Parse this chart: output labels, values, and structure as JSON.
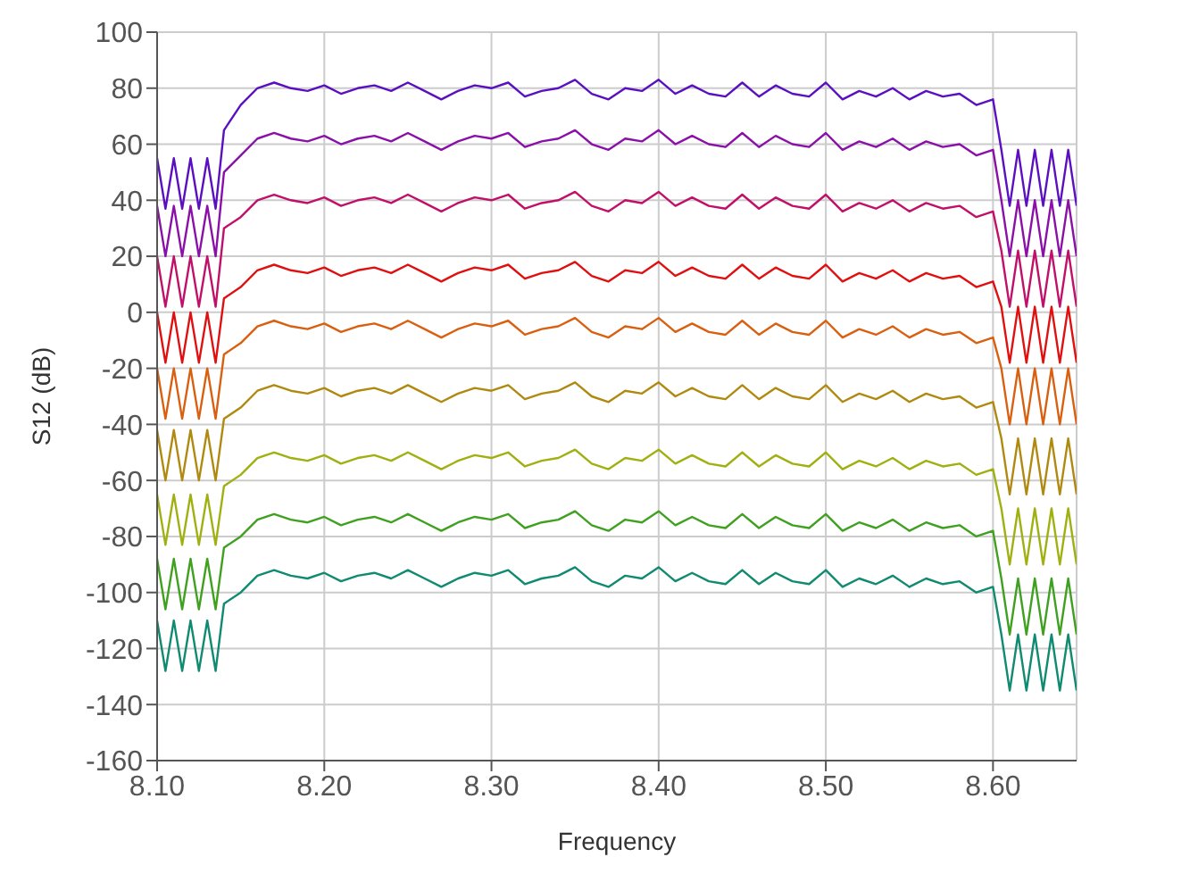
{
  "chart_data": {
    "type": "line",
    "xlabel": "Frequency",
    "ylabel": "S12 (dB)",
    "xlim": [
      8.1,
      8.65
    ],
    "xticks": [
      {
        "value": 8.1,
        "label": "8.10"
      },
      {
        "value": 8.2,
        "label": "8.20"
      },
      {
        "value": 8.3,
        "label": "8.30"
      },
      {
        "value": 8.4,
        "label": "8.40"
      },
      {
        "value": 8.5,
        "label": "8.50"
      },
      {
        "value": 8.6,
        "label": "8.60"
      }
    ],
    "ylim": [
      -160,
      100
    ],
    "yticks": [
      -160,
      -140,
      -120,
      -100,
      -80,
      -60,
      -40,
      -20,
      0,
      20,
      40,
      60,
      80,
      100
    ],
    "grid": true,
    "x": [
      8.1,
      8.105,
      8.11,
      8.115,
      8.12,
      8.125,
      8.13,
      8.135,
      8.14,
      8.15,
      8.16,
      8.17,
      8.18,
      8.19,
      8.2,
      8.21,
      8.22,
      8.23,
      8.24,
      8.25,
      8.26,
      8.27,
      8.28,
      8.29,
      8.3,
      8.31,
      8.32,
      8.33,
      8.34,
      8.35,
      8.36,
      8.37,
      8.38,
      8.39,
      8.4,
      8.41,
      8.42,
      8.43,
      8.44,
      8.45,
      8.46,
      8.47,
      8.48,
      8.49,
      8.5,
      8.51,
      8.52,
      8.53,
      8.54,
      8.55,
      8.56,
      8.57,
      8.58,
      8.59,
      8.6,
      8.605,
      8.61,
      8.615,
      8.62,
      8.625,
      8.63,
      8.635,
      8.64,
      8.645,
      8.65
    ],
    "series": [
      {
        "color": "#5a10c0",
        "values": [
          55,
          37,
          55,
          37,
          55,
          37,
          55,
          37,
          65,
          74,
          80,
          82,
          80,
          79,
          81,
          78,
          80,
          81,
          79,
          82,
          79,
          76,
          79,
          81,
          80,
          82,
          77,
          79,
          80,
          83,
          78,
          76,
          80,
          79,
          83,
          78,
          81,
          78,
          77,
          82,
          77,
          81,
          78,
          77,
          82,
          76,
          79,
          77,
          80,
          76,
          79,
          77,
          78,
          74,
          76,
          58,
          38,
          58,
          38,
          58,
          38,
          58,
          38,
          58,
          38
        ]
      },
      {
        "color": "#8a10a8",
        "values": [
          38,
          20,
          38,
          20,
          38,
          20,
          38,
          20,
          50,
          56,
          62,
          64,
          62,
          61,
          63,
          60,
          62,
          63,
          61,
          64,
          61,
          58,
          61,
          63,
          62,
          64,
          59,
          61,
          62,
          65,
          60,
          58,
          62,
          61,
          65,
          60,
          63,
          60,
          59,
          64,
          59,
          63,
          60,
          59,
          64,
          58,
          61,
          59,
          62,
          58,
          61,
          59,
          60,
          56,
          58,
          40,
          20,
          40,
          20,
          40,
          20,
          40,
          20,
          40,
          20
        ]
      },
      {
        "color": "#c0106a",
        "values": [
          20,
          2,
          20,
          2,
          20,
          2,
          20,
          2,
          30,
          34,
          40,
          42,
          40,
          39,
          41,
          38,
          40,
          41,
          39,
          42,
          39,
          36,
          39,
          41,
          40,
          42,
          37,
          39,
          40,
          43,
          38,
          36,
          40,
          39,
          43,
          38,
          41,
          38,
          37,
          42,
          37,
          41,
          38,
          37,
          42,
          36,
          39,
          37,
          40,
          36,
          39,
          37,
          38,
          34,
          36,
          22,
          2,
          22,
          2,
          22,
          2,
          22,
          2,
          22,
          2
        ]
      },
      {
        "color": "#e01010",
        "values": [
          0,
          -18,
          0,
          -18,
          0,
          -18,
          0,
          -18,
          5,
          9,
          15,
          17,
          15,
          14,
          16,
          13,
          15,
          16,
          14,
          17,
          14,
          11,
          14,
          16,
          15,
          17,
          12,
          14,
          15,
          18,
          13,
          11,
          15,
          14,
          18,
          13,
          16,
          13,
          12,
          17,
          12,
          16,
          13,
          12,
          17,
          11,
          14,
          12,
          15,
          11,
          14,
          12,
          13,
          9,
          11,
          2,
          -18,
          2,
          -18,
          2,
          -18,
          2,
          -18,
          2,
          -18
        ]
      },
      {
        "color": "#d86010",
        "values": [
          -20,
          -38,
          -20,
          -38,
          -20,
          -38,
          -20,
          -38,
          -15,
          -11,
          -5,
          -3,
          -5,
          -6,
          -4,
          -7,
          -5,
          -4,
          -6,
          -3,
          -6,
          -9,
          -6,
          -4,
          -5,
          -3,
          -8,
          -6,
          -5,
          -2,
          -7,
          -9,
          -5,
          -6,
          -2,
          -7,
          -4,
          -7,
          -8,
          -3,
          -8,
          -4,
          -7,
          -8,
          -3,
          -9,
          -6,
          -8,
          -5,
          -9,
          -6,
          -8,
          -7,
          -11,
          -9,
          -20,
          -40,
          -20,
          -40,
          -20,
          -40,
          -20,
          -40,
          -20,
          -40
        ]
      },
      {
        "color": "#b08a10",
        "values": [
          -42,
          -60,
          -42,
          -60,
          -42,
          -60,
          -42,
          -60,
          -38,
          -34,
          -28,
          -26,
          -28,
          -29,
          -27,
          -30,
          -28,
          -27,
          -29,
          -26,
          -29,
          -32,
          -29,
          -27,
          -28,
          -26,
          -31,
          -29,
          -28,
          -25,
          -30,
          -32,
          -28,
          -29,
          -25,
          -30,
          -27,
          -30,
          -31,
          -26,
          -31,
          -27,
          -30,
          -31,
          -26,
          -32,
          -29,
          -31,
          -28,
          -32,
          -29,
          -31,
          -30,
          -34,
          -32,
          -45,
          -65,
          -45,
          -65,
          -45,
          -65,
          -45,
          -65,
          -45,
          -65
        ]
      },
      {
        "color": "#a0b010",
        "values": [
          -65,
          -83,
          -65,
          -83,
          -65,
          -83,
          -65,
          -83,
          -62,
          -58,
          -52,
          -50,
          -52,
          -53,
          -51,
          -54,
          -52,
          -51,
          -53,
          -50,
          -53,
          -56,
          -53,
          -51,
          -52,
          -50,
          -55,
          -53,
          -52,
          -49,
          -54,
          -56,
          -52,
          -53,
          -49,
          -54,
          -51,
          -54,
          -55,
          -50,
          -55,
          -51,
          -54,
          -55,
          -50,
          -56,
          -53,
          -55,
          -52,
          -56,
          -53,
          -55,
          -54,
          -58,
          -56,
          -70,
          -90,
          -70,
          -90,
          -70,
          -90,
          -70,
          -90,
          -70,
          -90
        ]
      },
      {
        "color": "#40a020",
        "values": [
          -88,
          -106,
          -88,
          -106,
          -88,
          -106,
          -88,
          -106,
          -84,
          -80,
          -74,
          -72,
          -74,
          -75,
          -73,
          -76,
          -74,
          -73,
          -75,
          -72,
          -75,
          -78,
          -75,
          -73,
          -74,
          -72,
          -77,
          -75,
          -74,
          -71,
          -76,
          -78,
          -74,
          -75,
          -71,
          -76,
          -73,
          -76,
          -77,
          -72,
          -77,
          -73,
          -76,
          -77,
          -72,
          -78,
          -75,
          -77,
          -74,
          -78,
          -75,
          -77,
          -76,
          -80,
          -78,
          -95,
          -115,
          -95,
          -115,
          -95,
          -115,
          -95,
          -115,
          -95,
          -115
        ]
      },
      {
        "color": "#108a70",
        "values": [
          -110,
          -128,
          -110,
          -128,
          -110,
          -128,
          -110,
          -128,
          -104,
          -100,
          -94,
          -92,
          -94,
          -95,
          -93,
          -96,
          -94,
          -93,
          -95,
          -92,
          -95,
          -98,
          -95,
          -93,
          -94,
          -92,
          -97,
          -95,
          -94,
          -91,
          -96,
          -98,
          -94,
          -95,
          -91,
          -96,
          -93,
          -96,
          -97,
          -92,
          -97,
          -93,
          -96,
          -97,
          -92,
          -98,
          -95,
          -97,
          -94,
          -98,
          -95,
          -97,
          -96,
          -100,
          -98,
          -115,
          -135,
          -115,
          -135,
          -115,
          -135,
          -115,
          -135,
          -115,
          -135
        ]
      }
    ]
  }
}
